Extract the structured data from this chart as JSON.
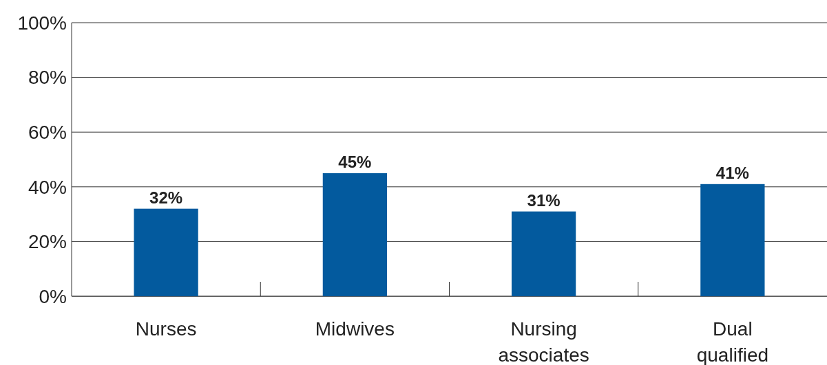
{
  "chart_data": {
    "type": "bar",
    "categories": [
      "Nurses",
      "Midwives",
      "Nursing associates",
      "Dual qualified"
    ],
    "values": [
      32,
      45,
      31,
      41
    ],
    "value_labels": [
      "32%",
      "45%",
      "31%",
      "41%"
    ],
    "color": "#035a9e",
    "ylim": [
      0,
      100
    ],
    "yticks": [
      {
        "value": 0,
        "label": "0%"
      },
      {
        "value": 20,
        "label": "20%"
      },
      {
        "value": 40,
        "label": "40%"
      },
      {
        "value": 60,
        "label": "60%"
      },
      {
        "value": 80,
        "label": "80%"
      },
      {
        "value": 100,
        "label": "100%"
      }
    ],
    "grid": "y"
  }
}
